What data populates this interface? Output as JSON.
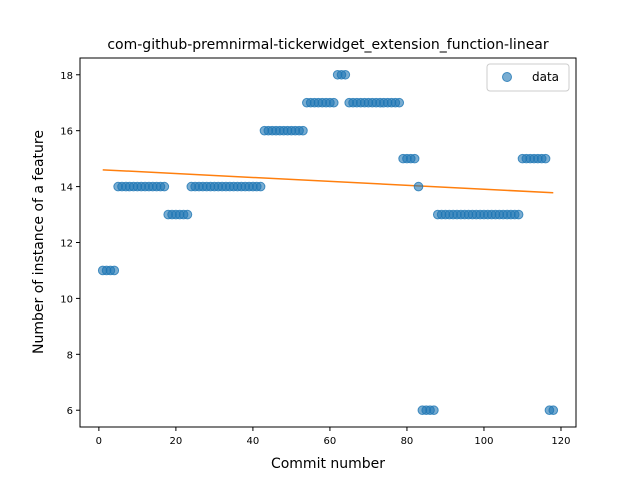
{
  "chart_data": {
    "type": "scatter",
    "title": "com-github-premnirmal-tickerwidget_extension_function-linear",
    "xlabel": "Commit number",
    "ylabel": "Number of instance of a feature",
    "xlim": [
      -4.9,
      123.9
    ],
    "ylim": [
      5.4,
      18.6
    ],
    "xticks": [
      0,
      20,
      40,
      60,
      80,
      100,
      120
    ],
    "yticks": [
      6,
      8,
      10,
      12,
      14,
      16,
      18
    ],
    "grid": false,
    "legend_position": "upper right",
    "colors": {
      "points": "#1f77b4",
      "fit_line": "#ff7f0e"
    },
    "series": [
      {
        "name": "data",
        "kind": "scatter",
        "x": [
          1,
          2,
          3,
          4,
          5,
          6,
          7,
          8,
          9,
          10,
          11,
          12,
          13,
          14,
          15,
          16,
          17,
          18,
          19,
          20,
          21,
          22,
          23,
          24,
          25,
          26,
          27,
          28,
          29,
          30,
          31,
          32,
          33,
          34,
          35,
          36,
          37,
          38,
          39,
          40,
          41,
          42,
          43,
          44,
          45,
          46,
          47,
          48,
          49,
          50,
          51,
          52,
          53,
          54,
          55,
          56,
          57,
          58,
          59,
          60,
          61,
          62,
          63,
          64,
          65,
          66,
          67,
          68,
          69,
          70,
          71,
          72,
          73,
          74,
          75,
          76,
          77,
          78,
          79,
          80,
          81,
          82,
          83,
          84,
          85,
          86,
          87,
          88,
          89,
          90,
          91,
          92,
          93,
          94,
          95,
          96,
          97,
          98,
          99,
          100,
          101,
          102,
          103,
          104,
          105,
          106,
          107,
          108,
          109,
          110,
          111,
          112,
          113,
          114,
          115,
          116,
          117,
          118
        ],
        "y": [
          11,
          11,
          11,
          11,
          14,
          14,
          14,
          14,
          14,
          14,
          14,
          14,
          14,
          14,
          14,
          14,
          14,
          13,
          13,
          13,
          13,
          13,
          13,
          14,
          14,
          14,
          14,
          14,
          14,
          14,
          14,
          14,
          14,
          14,
          14,
          14,
          14,
          14,
          14,
          14,
          14,
          14,
          16,
          16,
          16,
          16,
          16,
          16,
          16,
          16,
          16,
          16,
          16,
          17,
          17,
          17,
          17,
          17,
          17,
          17,
          17,
          18,
          18,
          18,
          17,
          17,
          17,
          17,
          17,
          17,
          17,
          17,
          17,
          17,
          17,
          17,
          17,
          17,
          15,
          15,
          15,
          15,
          14,
          6,
          6,
          6,
          6,
          13,
          13,
          13,
          13,
          13,
          13,
          13,
          13,
          13,
          13,
          13,
          13,
          13,
          13,
          13,
          13,
          13,
          13,
          13,
          13,
          13,
          13,
          15,
          15,
          15,
          15,
          15,
          15,
          15,
          6,
          6
        ]
      },
      {
        "kind": "line",
        "x": [
          1,
          118
        ],
        "y": [
          14.6,
          13.78
        ]
      }
    ]
  }
}
